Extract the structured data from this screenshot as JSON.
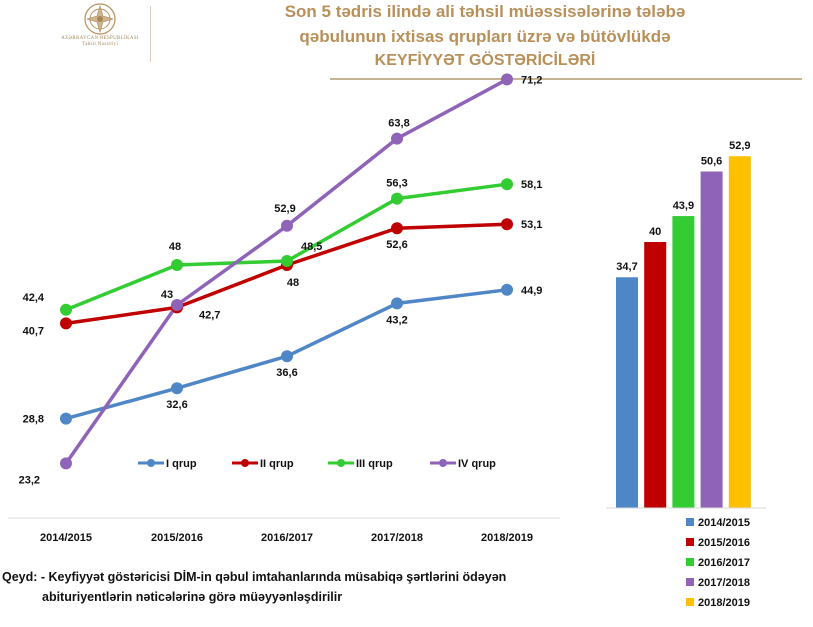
{
  "header": {
    "logo_text_1": "AZƏRBAYCAN RESPUBLİKASI",
    "logo_text_2": "Təhsil Nazirliyi",
    "title_line1": "Son 5 tədris ilində ali təhsil müəssisələrinə tələbə",
    "title_line2": "qəbulunun ixtisas qrupları üzrə və bütövlükdə",
    "title_line3": "KEYFİYYƏT GÖSTƏRİCİLƏRİ"
  },
  "footnote": {
    "line1": "Qeyd: - Keyfiyyət göstəricisi DİM-in qəbul imtahanlarında müsabiqə şərtlərini ödəyən",
    "line2": "abituriyentlərin nəticələrinə görə müəyyənləşdirilir"
  },
  "chart_data": [
    {
      "type": "line",
      "categories": [
        "2014/2015",
        "2015/2016",
        "2016/2017",
        "2017/2018",
        "2018/2019"
      ],
      "series": [
        {
          "name": "I qrup",
          "color": "#4f86c6",
          "values": [
            28.8,
            32.6,
            36.6,
            43.2,
            44.9
          ]
        },
        {
          "name": "II qrup",
          "color": "#c00000",
          "values": [
            40.7,
            42.7,
            48,
            52.6,
            53.1
          ]
        },
        {
          "name": "III qrup",
          "color": "#33cc33",
          "values": [
            42.4,
            48,
            48.5,
            56.3,
            58.1
          ]
        },
        {
          "name": "IV qrup",
          "color": "#8e63b8",
          "values": [
            23.2,
            43,
            52.9,
            63.8,
            71.2
          ]
        }
      ],
      "data_labels": {
        "I qrup": [
          "28,8",
          "32,6",
          "36,6",
          "43,2",
          "44,9"
        ],
        "II qrup": [
          "40,7",
          "42,7",
          "48",
          "52,6",
          "53,1"
        ],
        "III qrup": [
          "42,4",
          "48",
          "48,5",
          "56,3",
          "58,1"
        ],
        "IV qrup": [
          "23,2",
          "43",
          "52,9",
          "63,8",
          "71,2"
        ]
      },
      "legend": "inside-bottom",
      "grid": false,
      "ylim": [
        20,
        75
      ]
    },
    {
      "type": "bar",
      "categories": [
        "2014/2015",
        "2015/2016",
        "2016/2017",
        "2017/2018",
        "2018/2019"
      ],
      "values": [
        34.7,
        40,
        43.9,
        50.6,
        52.9
      ],
      "data_labels": [
        "34,7",
        "40",
        "43,9",
        "50,6",
        "52,9"
      ],
      "colors": [
        "#4f86c6",
        "#c00000",
        "#33cc33",
        "#8e63b8",
        "#ffc000"
      ],
      "legend": "bottom",
      "grid": false,
      "ylim": [
        0,
        53
      ]
    }
  ]
}
